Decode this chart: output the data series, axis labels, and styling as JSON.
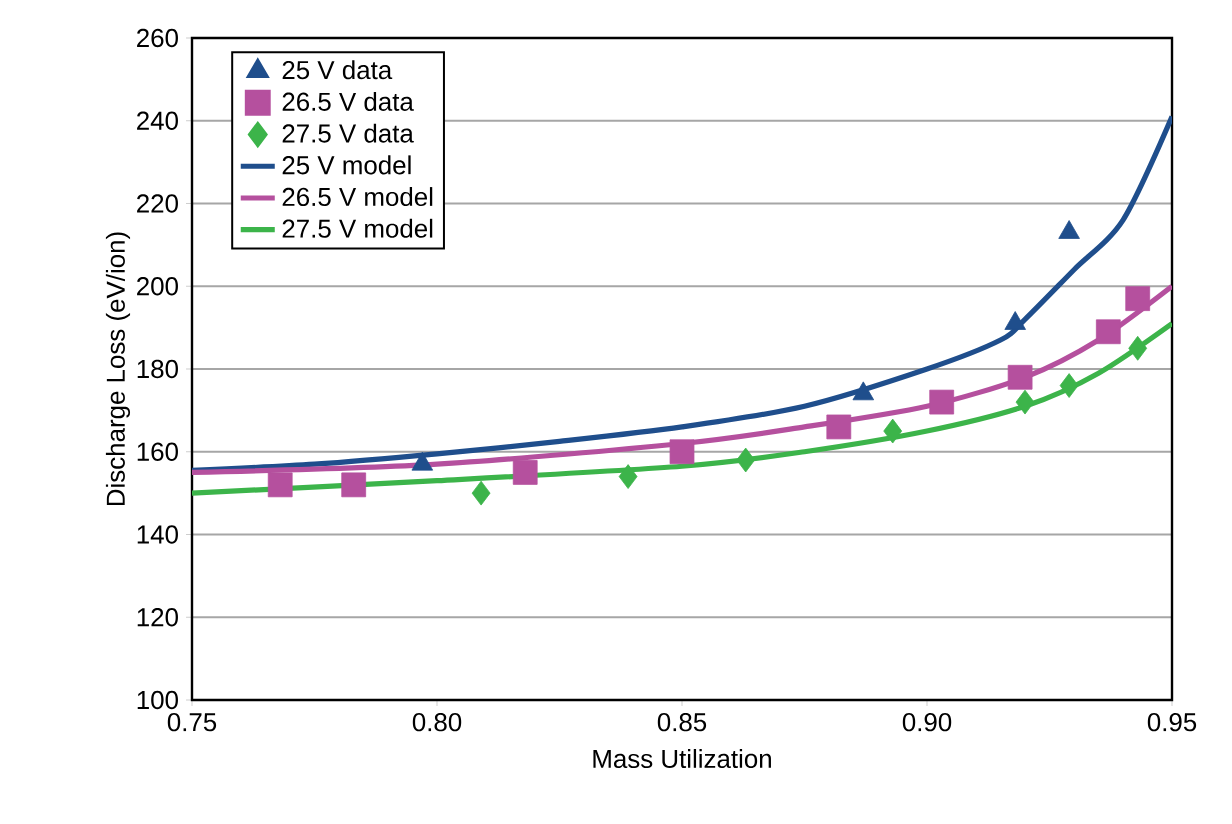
{
  "chart_data": {
    "type": "scatter",
    "xlabel": "Mass Utilization",
    "ylabel": "Discharge Loss (eV/ion)",
    "xlim": [
      0.75,
      0.95
    ],
    "xticks": [
      {
        "value": 0.75,
        "label": "0.75"
      },
      {
        "value": 0.8,
        "label": "0.80"
      },
      {
        "value": 0.85,
        "label": "0.85"
      },
      {
        "value": 0.9,
        "label": "0.90"
      },
      {
        "value": 0.95,
        "label": "0.95"
      }
    ],
    "ylim": [
      100,
      260
    ],
    "yticks": [
      100,
      120,
      140,
      160,
      180,
      200,
      220,
      240,
      260
    ],
    "grid": "y",
    "legend": "top left",
    "series": [
      {
        "name": "25 V data",
        "marker": "triangle",
        "color": "#1f4e8c",
        "x": [
          0.797,
          0.887,
          0.918,
          0.929
        ],
        "values": [
          157,
          174,
          191,
          213
        ]
      },
      {
        "name": "26.5 V data",
        "marker": "square",
        "color": "#b5509e",
        "x": [
          0.768,
          0.783,
          0.818,
          0.85,
          0.882,
          0.903,
          0.919,
          0.937,
          0.943
        ],
        "values": [
          152,
          152,
          155,
          160,
          166,
          172,
          178,
          189,
          197
        ]
      },
      {
        "name": "27.5 V data",
        "marker": "diamond",
        "color": "#3cb44a",
        "x": [
          0.809,
          0.839,
          0.863,
          0.893,
          0.92,
          0.929,
          0.943
        ],
        "values": [
          150,
          154,
          158,
          165,
          172,
          176,
          185
        ]
      },
      {
        "name": "25 V model",
        "type": "line",
        "marker": "none",
        "color": "#1f4e8c",
        "x": [
          0.75,
          0.775,
          0.8,
          0.825,
          0.85,
          0.875,
          0.9,
          0.915,
          0.92,
          0.93,
          0.94,
          0.95
        ],
        "values": [
          155.5,
          157,
          159.5,
          162.5,
          166,
          171,
          180,
          187,
          192,
          204,
          216,
          241
        ]
      },
      {
        "name": "26.5 V model",
        "type": "line",
        "marker": "none",
        "color": "#b5509e",
        "x": [
          0.75,
          0.8,
          0.85,
          0.875,
          0.9,
          0.92,
          0.935,
          0.95
        ],
        "values": [
          155,
          157,
          162,
          166,
          171,
          178,
          187,
          200
        ]
      },
      {
        "name": "27.5 V model",
        "type": "line",
        "marker": "none",
        "color": "#3cb44a",
        "x": [
          0.75,
          0.8,
          0.85,
          0.875,
          0.9,
          0.92,
          0.935,
          0.95
        ],
        "values": [
          150,
          153,
          156.5,
          160,
          165,
          171,
          179,
          191
        ]
      }
    ]
  }
}
